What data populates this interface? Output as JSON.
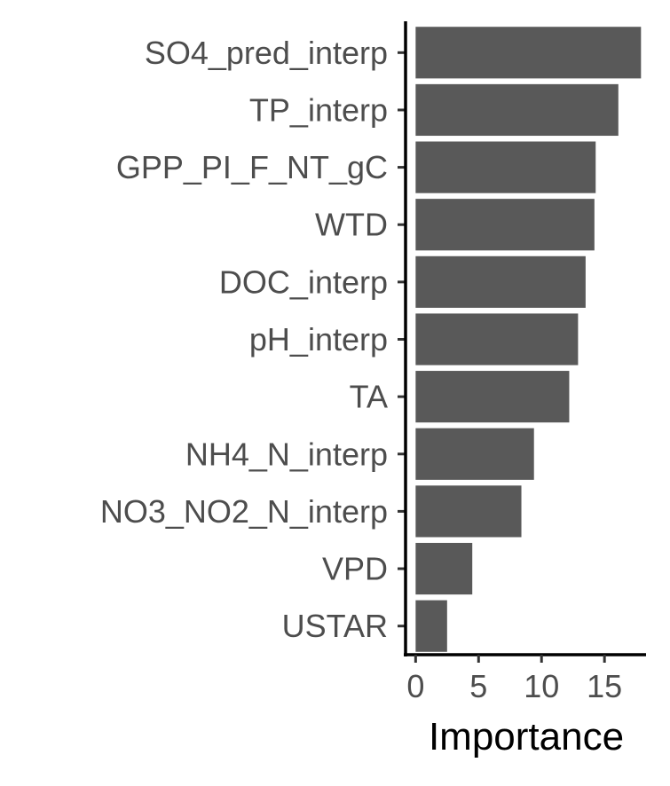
{
  "chart_data": {
    "type": "bar",
    "orientation": "horizontal",
    "categories": [
      "SO4_pred_interp",
      "TP_interp",
      "GPP_PI_F_NT_gC",
      "WTD",
      "DOC_interp",
      "pH_interp",
      "TA",
      "NH4_N_interp",
      "NO3_NO2_N_interp",
      "VPD",
      "USTAR"
    ],
    "values": [
      17.9,
      16.1,
      14.3,
      14.2,
      13.5,
      12.9,
      12.2,
      9.4,
      8.4,
      4.5,
      2.5
    ],
    "xlabel": "Importance",
    "ylabel": "",
    "xlim": [
      -0.8,
      18.3
    ],
    "xticks": [
      0,
      5,
      10,
      15
    ],
    "xtick_labels": [
      "0",
      "5",
      "10",
      "15"
    ],
    "bar_color": "#595959",
    "grid": false,
    "legend": "none"
  }
}
